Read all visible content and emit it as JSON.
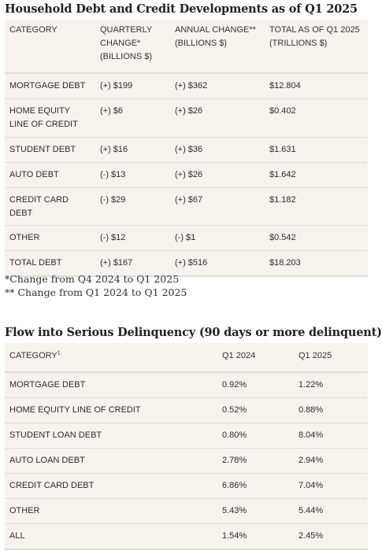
{
  "section1": {
    "title": "Household Debt and Credit Developments as of Q1 2025",
    "headers": [
      "CATEGORY",
      "QUARTERLY CHANGE* (BILLIONS $)",
      "ANNUAL CHANGE** (BILLIONS $)",
      "TOTAL AS OF Q1 2025 (TRILLIONS $)"
    ],
    "rows": [
      {
        "category": "MORTGAGE DEBT",
        "quarterly": "(+) $199",
        "annual": "(+) $362",
        "total": "$12.804"
      },
      {
        "category": "HOME EQUITY LINE OF CREDIT",
        "quarterly": "(+) $6",
        "annual": "(+) $26",
        "total": "$0.402"
      },
      {
        "category": "STUDENT DEBT",
        "quarterly": "(+) $16",
        "annual": "(+) $36",
        "total": "$1.631"
      },
      {
        "category": "AUTO DEBT",
        "quarterly": "(-) $13",
        "annual": "(+) $26",
        "total": "$1.642"
      },
      {
        "category": "CREDIT CARD DEBT",
        "quarterly": "(-) $29",
        "annual": "(+) $67",
        "total": "$1.182"
      },
      {
        "category": "OTHER",
        "quarterly": "(-) $12",
        "annual": "(-) $1",
        "total": "$0.542"
      },
      {
        "category": "TOTAL DEBT",
        "quarterly": "(+) $167",
        "annual": "(+) $516",
        "total": "$18.203"
      }
    ],
    "notes": [
      "*Change from Q4 2024 to Q1 2025",
      "** Change from Q1 2024 to Q1 2025"
    ]
  },
  "section2": {
    "title": "Flow into Serious Delinquency (90 days or more delinquent)",
    "headers": {
      "category": "CATEGORY",
      "category_sup": "1",
      "q1_2024": "Q1 2024",
      "q1_2025": "Q1 2025"
    },
    "rows": [
      {
        "category": "MORTGAGE DEBT",
        "q1_2024": "0.92%",
        "q1_2025": "1.22%"
      },
      {
        "category": "HOME EQUITY LINE OF CREDIT",
        "q1_2024": "0.52%",
        "q1_2025": "0.88%"
      },
      {
        "category": "STUDENT LOAN DEBT",
        "q1_2024": "0.80%",
        "q1_2025": "8.04%"
      },
      {
        "category": "AUTO LOAN DEBT",
        "q1_2024": "2.78%",
        "q1_2025": "2.94%"
      },
      {
        "category": "CREDIT CARD DEBT",
        "q1_2024": "6.86%",
        "q1_2025": "7.04%"
      },
      {
        "category": "OTHER",
        "q1_2024": "5.43%",
        "q1_2025": "5.44%"
      },
      {
        "category": "ALL",
        "q1_2024": "1.54%",
        "q1_2025": "2.45%"
      }
    ]
  }
}
